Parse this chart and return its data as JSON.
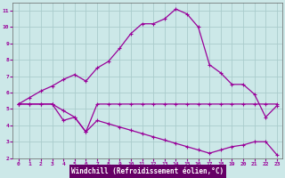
{
  "xlabel": "Windchill (Refroidissement éolien,°C)",
  "bg_color": "#cce8e8",
  "grid_color": "#aacccc",
  "line_color": "#990099",
  "label_bg": "#660066",
  "xlim": [
    -0.5,
    23.5
  ],
  "ylim": [
    2,
    11.5
  ],
  "xticks": [
    0,
    1,
    2,
    3,
    4,
    5,
    6,
    7,
    8,
    9,
    10,
    11,
    12,
    13,
    14,
    15,
    16,
    17,
    18,
    19,
    20,
    21,
    22,
    23
  ],
  "yticks": [
    2,
    3,
    4,
    5,
    6,
    7,
    8,
    9,
    10,
    11
  ],
  "curve1_x": [
    0,
    1,
    2,
    3,
    4,
    5,
    6,
    7,
    8,
    9,
    10,
    11,
    12,
    13,
    14,
    15,
    16,
    17,
    18,
    19,
    20,
    21,
    22,
    23
  ],
  "curve1_y": [
    5.3,
    5.7,
    6.1,
    6.4,
    6.8,
    7.1,
    6.7,
    7.5,
    7.9,
    8.7,
    9.6,
    10.2,
    10.2,
    10.5,
    11.1,
    10.8,
    10.0,
    7.7,
    7.2,
    6.5,
    6.5,
    5.9,
    4.5,
    5.2
  ],
  "curve2_x": [
    0,
    1,
    2,
    3,
    4,
    5,
    6,
    7,
    8,
    9,
    10,
    11,
    12,
    13,
    14,
    15,
    16,
    17,
    18,
    19,
    20,
    21,
    22,
    23
  ],
  "curve2_y": [
    5.3,
    5.3,
    5.3,
    5.3,
    4.9,
    4.5,
    3.6,
    5.3,
    5.3,
    5.3,
    5.3,
    5.3,
    5.3,
    5.3,
    5.3,
    5.3,
    5.3,
    5.3,
    5.3,
    5.3,
    5.3,
    5.3,
    5.3,
    5.3
  ],
  "curve3_x": [
    0,
    1,
    2,
    3,
    4,
    5,
    6,
    7,
    8,
    9,
    10,
    11,
    12,
    13,
    14,
    15,
    16,
    17,
    18,
    19,
    20,
    21,
    22,
    23
  ],
  "curve3_y": [
    5.3,
    5.3,
    5.3,
    5.3,
    4.3,
    4.5,
    3.6,
    4.3,
    4.1,
    3.9,
    3.7,
    3.5,
    3.3,
    3.1,
    2.9,
    2.7,
    2.5,
    2.3,
    2.5,
    2.7,
    2.8,
    3.0,
    3.0,
    2.2
  ]
}
